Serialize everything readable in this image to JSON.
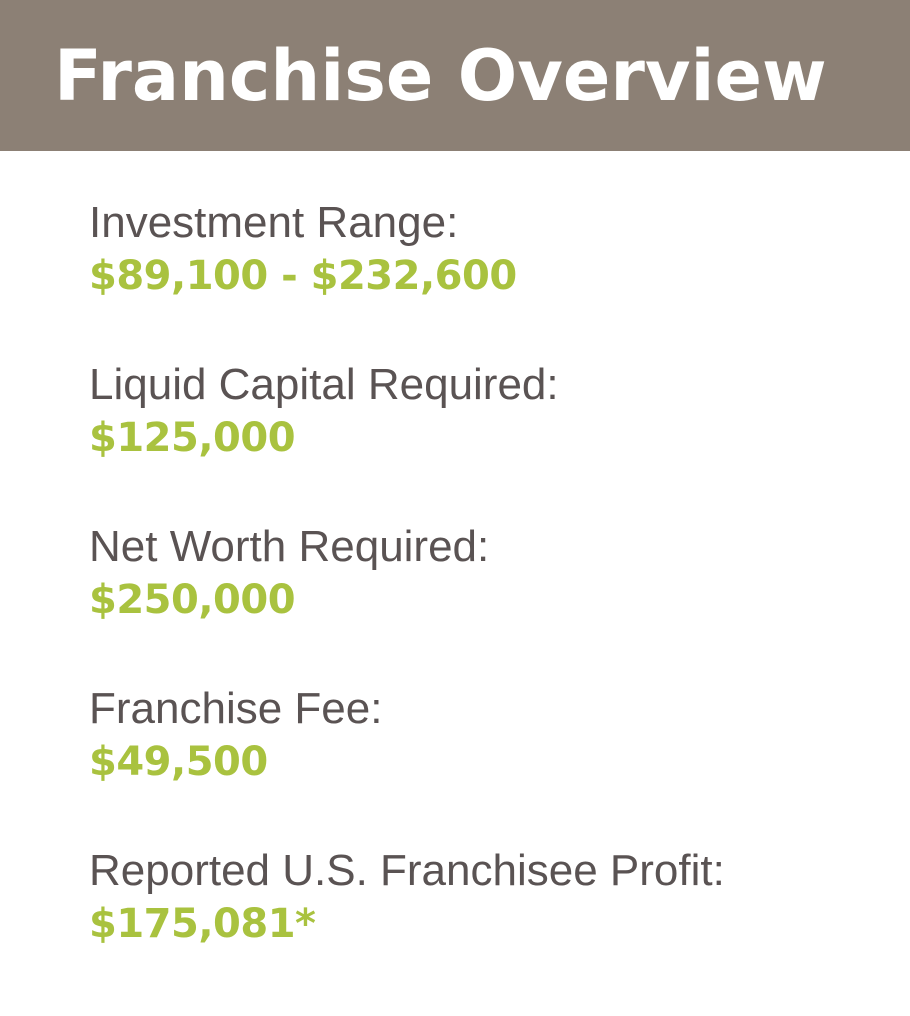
{
  "header": {
    "title": "Franchise Overview"
  },
  "items": [
    {
      "label": "Investment Range:",
      "value": "$89,100 - $232,600"
    },
    {
      "label": "Liquid Capital Required:",
      "value": "$125,000"
    },
    {
      "label": "Net Worth Required:",
      "value": "$250,000"
    },
    {
      "label": "Franchise Fee:",
      "value": "$49,500"
    },
    {
      "label": "Reported U.S. Franchisee Profit:",
      "value": "$175,081*"
    }
  ],
  "colors": {
    "header_background": "#8c8075",
    "label_text": "#5a5353",
    "value_text": "#a9c23f"
  }
}
